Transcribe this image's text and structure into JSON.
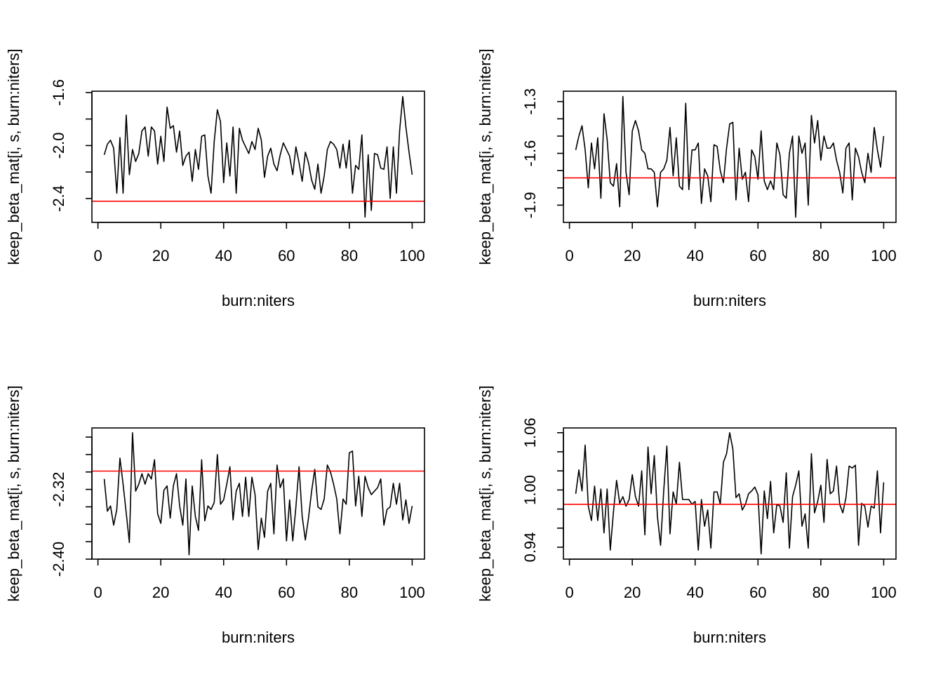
{
  "chart_data": [
    {
      "type": "line",
      "xlabel": "burn:niters",
      "ylabel": "keep_beta_mat[i, s, burn:niters]",
      "color": "#000000",
      "hline": {
        "value": -2.42,
        "color": "#ff0000"
      },
      "xlim": [
        -1.92,
        103.92
      ],
      "ylim": [
        -2.58,
        -1.59
      ],
      "xticks": [
        0,
        20,
        40,
        60,
        80,
        100
      ],
      "yticks": [
        -1.6,
        {
          "value": -2,
          "label": "-2.0"
        },
        -2.4
      ],
      "yticks_minor": [
        -1.8,
        -2.2
      ],
      "x": [
        2,
        3,
        4,
        5,
        6,
        7,
        8,
        9,
        10,
        11,
        12,
        13,
        14,
        15,
        16,
        17,
        18,
        19,
        20,
        21,
        22,
        23,
        24,
        25,
        26,
        27,
        28,
        29,
        30,
        31,
        32,
        33,
        34,
        35,
        36,
        37,
        38,
        39,
        40,
        41,
        42,
        43,
        44,
        45,
        46,
        47,
        48,
        49,
        50,
        51,
        52,
        53,
        54,
        55,
        56,
        57,
        58,
        59,
        60,
        61,
        62,
        63,
        64,
        65,
        66,
        67,
        68,
        69,
        70,
        71,
        72,
        73,
        74,
        75,
        76,
        77,
        78,
        79,
        80,
        81,
        82,
        83,
        84,
        85,
        86,
        87,
        88,
        89,
        90,
        91,
        92,
        93,
        94,
        95,
        96,
        97,
        98,
        99,
        100
      ],
      "values": [
        -2.07,
        -1.99,
        -1.96,
        -2.02,
        -2.36,
        -1.94,
        -2.36,
        -1.77,
        -2.22,
        -2.03,
        -2.12,
        -2.06,
        -1.89,
        -1.86,
        -2.08,
        -1.86,
        -1.89,
        -2.14,
        -1.93,
        -2.12,
        -1.71,
        -1.87,
        -1.85,
        -2.05,
        -1.89,
        -2.15,
        -2.08,
        -2.05,
        -2.27,
        -2.03,
        -2.18,
        -1.93,
        -1.92,
        -2.23,
        -2.36,
        -1.97,
        -1.73,
        -1.82,
        -2.28,
        -1.98,
        -2.23,
        -1.86,
        -2.36,
        -1.87,
        -1.96,
        -2.01,
        -2.06,
        -1.97,
        -2.03,
        -1.87,
        -1.96,
        -2.24,
        -2.08,
        -2.02,
        -2.14,
        -2.19,
        -2.07,
        -1.98,
        -2.03,
        -2.08,
        -2.22,
        -2.01,
        -2.13,
        -2.27,
        -2.05,
        -2.13,
        -2.26,
        -2.33,
        -2.14,
        -2.36,
        -2.23,
        -2.03,
        -1.97,
        -1.99,
        -2.03,
        -2.17,
        -1.99,
        -2.17,
        -1.96,
        -2.36,
        -2.15,
        -2.18,
        -1.92,
        -2.54,
        -2.07,
        -2.49,
        -2.06,
        -2.07,
        -2.17,
        -2.18,
        -2.01,
        -2.4,
        -2.01,
        -2.36,
        -1.89,
        -1.63,
        -1.86,
        -2.05,
        -2.22
      ]
    },
    {
      "type": "line",
      "xlabel": "burn:niters",
      "ylabel": "keep_beta_mat[i, s, burn:niters]",
      "color": "#000000",
      "hline": {
        "value": -1.742,
        "color": "#ff0000"
      },
      "xlim": [
        -1.92,
        103.92
      ],
      "ylim": [
        -2.0,
        -1.24
      ],
      "xticks": [
        0,
        20,
        40,
        60,
        80,
        100
      ],
      "yticks": [
        -1.3,
        -1.6,
        -1.9
      ],
      "yticks_minor": [
        -1.4,
        -1.5,
        -1.7,
        -1.8
      ],
      "x": [
        2,
        3,
        4,
        5,
        6,
        7,
        8,
        9,
        10,
        11,
        12,
        13,
        14,
        15,
        16,
        17,
        18,
        19,
        20,
        21,
        22,
        23,
        24,
        25,
        26,
        27,
        28,
        29,
        30,
        31,
        32,
        33,
        34,
        35,
        36,
        37,
        38,
        39,
        40,
        41,
        42,
        43,
        44,
        45,
        46,
        47,
        48,
        49,
        50,
        51,
        52,
        53,
        54,
        55,
        56,
        57,
        58,
        59,
        60,
        61,
        62,
        63,
        64,
        65,
        66,
        67,
        68,
        69,
        70,
        71,
        72,
        73,
        74,
        75,
        76,
        77,
        78,
        79,
        80,
        81,
        82,
        83,
        84,
        85,
        86,
        87,
        88,
        89,
        90,
        91,
        92,
        93,
        94,
        95,
        96,
        97,
        98,
        99,
        100
      ],
      "values": [
        -1.58,
        -1.5,
        -1.44,
        -1.58,
        -1.8,
        -1.54,
        -1.69,
        -1.51,
        -1.86,
        -1.37,
        -1.52,
        -1.77,
        -1.79,
        -1.66,
        -1.91,
        -1.27,
        -1.71,
        -1.84,
        -1.47,
        -1.41,
        -1.47,
        -1.58,
        -1.6,
        -1.69,
        -1.69,
        -1.71,
        -1.91,
        -1.71,
        -1.69,
        -1.64,
        -1.45,
        -1.73,
        -1.51,
        -1.79,
        -1.81,
        -1.31,
        -1.81,
        -1.58,
        -1.58,
        -1.54,
        -1.89,
        -1.69,
        -1.73,
        -1.88,
        -1.55,
        -1.56,
        -1.7,
        -1.77,
        -1.57,
        -1.43,
        -1.42,
        -1.87,
        -1.57,
        -1.75,
        -1.71,
        -1.88,
        -1.58,
        -1.62,
        -1.75,
        -1.47,
        -1.76,
        -1.81,
        -1.76,
        -1.81,
        -1.54,
        -1.61,
        -1.84,
        -1.86,
        -1.6,
        -1.5,
        -1.97,
        -1.5,
        -1.6,
        -1.54,
        -1.9,
        -1.38,
        -1.54,
        -1.41,
        -1.64,
        -1.5,
        -1.57,
        -1.57,
        -1.54,
        -1.64,
        -1.71,
        -1.83,
        -1.57,
        -1.54,
        -1.87,
        -1.57,
        -1.62,
        -1.71,
        -1.77,
        -1.6,
        -1.71,
        -1.45,
        -1.58,
        -1.68,
        -1.5
      ]
    },
    {
      "type": "line",
      "xlabel": "burn:niters",
      "ylabel": "keep_beta_mat[i, s, burn:niters]",
      "color": "#000000",
      "hline": {
        "value": -2.299,
        "color": "#ff0000"
      },
      "xlim": [
        -1.92,
        103.92
      ],
      "ylim": [
        -2.4,
        -2.2495
      ],
      "xticks": [
        0,
        20,
        40,
        60,
        80,
        100
      ],
      "yticks": [
        -2.32,
        {
          "value": -2.4,
          "label": "-2.40"
        }
      ],
      "yticks_minor": [
        -2.26,
        -2.28,
        -2.3,
        -2.34,
        -2.36,
        -2.38
      ],
      "x": [
        2,
        3,
        4,
        5,
        6,
        7,
        8,
        9,
        10,
        11,
        12,
        13,
        14,
        15,
        16,
        17,
        18,
        19,
        20,
        21,
        22,
        23,
        24,
        25,
        26,
        27,
        28,
        29,
        30,
        31,
        32,
        33,
        34,
        35,
        36,
        37,
        38,
        39,
        40,
        41,
        42,
        43,
        44,
        45,
        46,
        47,
        48,
        49,
        50,
        51,
        52,
        53,
        54,
        55,
        56,
        57,
        58,
        59,
        60,
        61,
        62,
        63,
        64,
        65,
        66,
        67,
        68,
        69,
        70,
        71,
        72,
        73,
        74,
        75,
        76,
        77,
        78,
        79,
        80,
        81,
        82,
        83,
        84,
        85,
        86,
        87,
        88,
        89,
        90,
        91,
        92,
        93,
        94,
        95,
        96,
        97,
        98,
        99,
        100
      ],
      "values": [
        -2.308,
        -2.345,
        -2.339,
        -2.361,
        -2.343,
        -2.284,
        -2.314,
        -2.347,
        -2.381,
        -2.255,
        -2.322,
        -2.314,
        -2.302,
        -2.314,
        -2.302,
        -2.308,
        -2.286,
        -2.348,
        -2.359,
        -2.321,
        -2.316,
        -2.353,
        -2.316,
        -2.302,
        -2.339,
        -2.361,
        -2.308,
        -2.395,
        -2.316,
        -2.351,
        -2.367,
        -2.286,
        -2.356,
        -2.339,
        -2.343,
        -2.335,
        -2.28,
        -2.337,
        -2.332,
        -2.314,
        -2.294,
        -2.355,
        -2.322,
        -2.313,
        -2.351,
        -2.306,
        -2.351,
        -2.306,
        -2.326,
        -2.389,
        -2.353,
        -2.375,
        -2.322,
        -2.313,
        -2.371,
        -2.292,
        -2.318,
        -2.308,
        -2.379,
        -2.332,
        -2.379,
        -2.34,
        -2.294,
        -2.351,
        -2.378,
        -2.353,
        -2.322,
        -2.297,
        -2.34,
        -2.343,
        -2.331,
        -2.292,
        -2.3,
        -2.314,
        -2.331,
        -2.371,
        -2.331,
        -2.337,
        -2.278,
        -2.276,
        -2.339,
        -2.305,
        -2.351,
        -2.305,
        -2.318,
        -2.326,
        -2.322,
        -2.318,
        -2.308,
        -2.361,
        -2.343,
        -2.34,
        -2.313,
        -2.337,
        -2.313,
        -2.355,
        -2.332,
        -2.359,
        -2.339
      ]
    },
    {
      "type": "line",
      "xlabel": "burn:niters",
      "ylabel": "keep_beta_mat[i, s, burn:niters]",
      "color": "#000000",
      "hline": {
        "value": 0.985,
        "color": "#ff0000"
      },
      "xlim": [
        -1.92,
        103.92
      ],
      "ylim": [
        0.9275,
        1.065
      ],
      "xticks": [
        0,
        20,
        40,
        60,
        80,
        100
      ],
      "yticks": [
        1.06,
        {
          "value": 1,
          "label": "1.00"
        },
        0.94
      ],
      "yticks_minor": [
        1.04,
        1.02,
        0.98,
        0.96
      ],
      "x": [
        2,
        3,
        4,
        5,
        6,
        7,
        8,
        9,
        10,
        11,
        12,
        13,
        14,
        15,
        16,
        17,
        18,
        19,
        20,
        21,
        22,
        23,
        24,
        25,
        26,
        27,
        28,
        29,
        30,
        31,
        32,
        33,
        34,
        35,
        36,
        37,
        38,
        39,
        40,
        41,
        42,
        43,
        44,
        45,
        46,
        47,
        48,
        49,
        50,
        51,
        52,
        53,
        54,
        55,
        56,
        57,
        58,
        59,
        60,
        61,
        62,
        63,
        64,
        65,
        66,
        67,
        68,
        69,
        70,
        71,
        72,
        73,
        74,
        75,
        76,
        77,
        78,
        79,
        80,
        81,
        82,
        83,
        84,
        85,
        86,
        87,
        88,
        89,
        90,
        91,
        92,
        93,
        94,
        95,
        96,
        97,
        98,
        99,
        100
      ],
      "values": [
        0.996,
        1.021,
        0.999,
        1.047,
        0.983,
        0.968,
        1.004,
        0.968,
        1.001,
        0.955,
        1.001,
        0.937,
        0.977,
        1.01,
        0.986,
        0.993,
        0.983,
        0.99,
        1.016,
        0.993,
        0.983,
        1.02,
        0.953,
        1.045,
        0.996,
        1.036,
        0.972,
        0.942,
        0.999,
        1.046,
        0.954,
        0.998,
        0.985,
        1.029,
        0.99,
        0.99,
        0.99,
        0.985,
        0.988,
        0.937,
        0.99,
        0.962,
        0.979,
        0.939,
        0.998,
        0.998,
        0.985,
        1.029,
        1.038,
        1.06,
        1.043,
        0.992,
        0.996,
        0.979,
        0.985,
        0.996,
        0.999,
        1.003,
        0.995,
        0.933,
        0.999,
        0.97,
        1.009,
        0.955,
        0.985,
        0.983,
        0.966,
        1.018,
        0.939,
        0.993,
        1.005,
        1.02,
        0.962,
        0.975,
        0.939,
        1.038,
        0.976,
        0.988,
        1.005,
        0.966,
        1.032,
        0.996,
        0.999,
        1.025,
        0.985,
        0.976,
        0.992,
        1.025,
        1.023,
        1.026,
        0.942,
        0.986,
        0.983,
        0.961,
        0.983,
        0.981,
        1.02,
        0.955,
        1.008
      ]
    }
  ]
}
